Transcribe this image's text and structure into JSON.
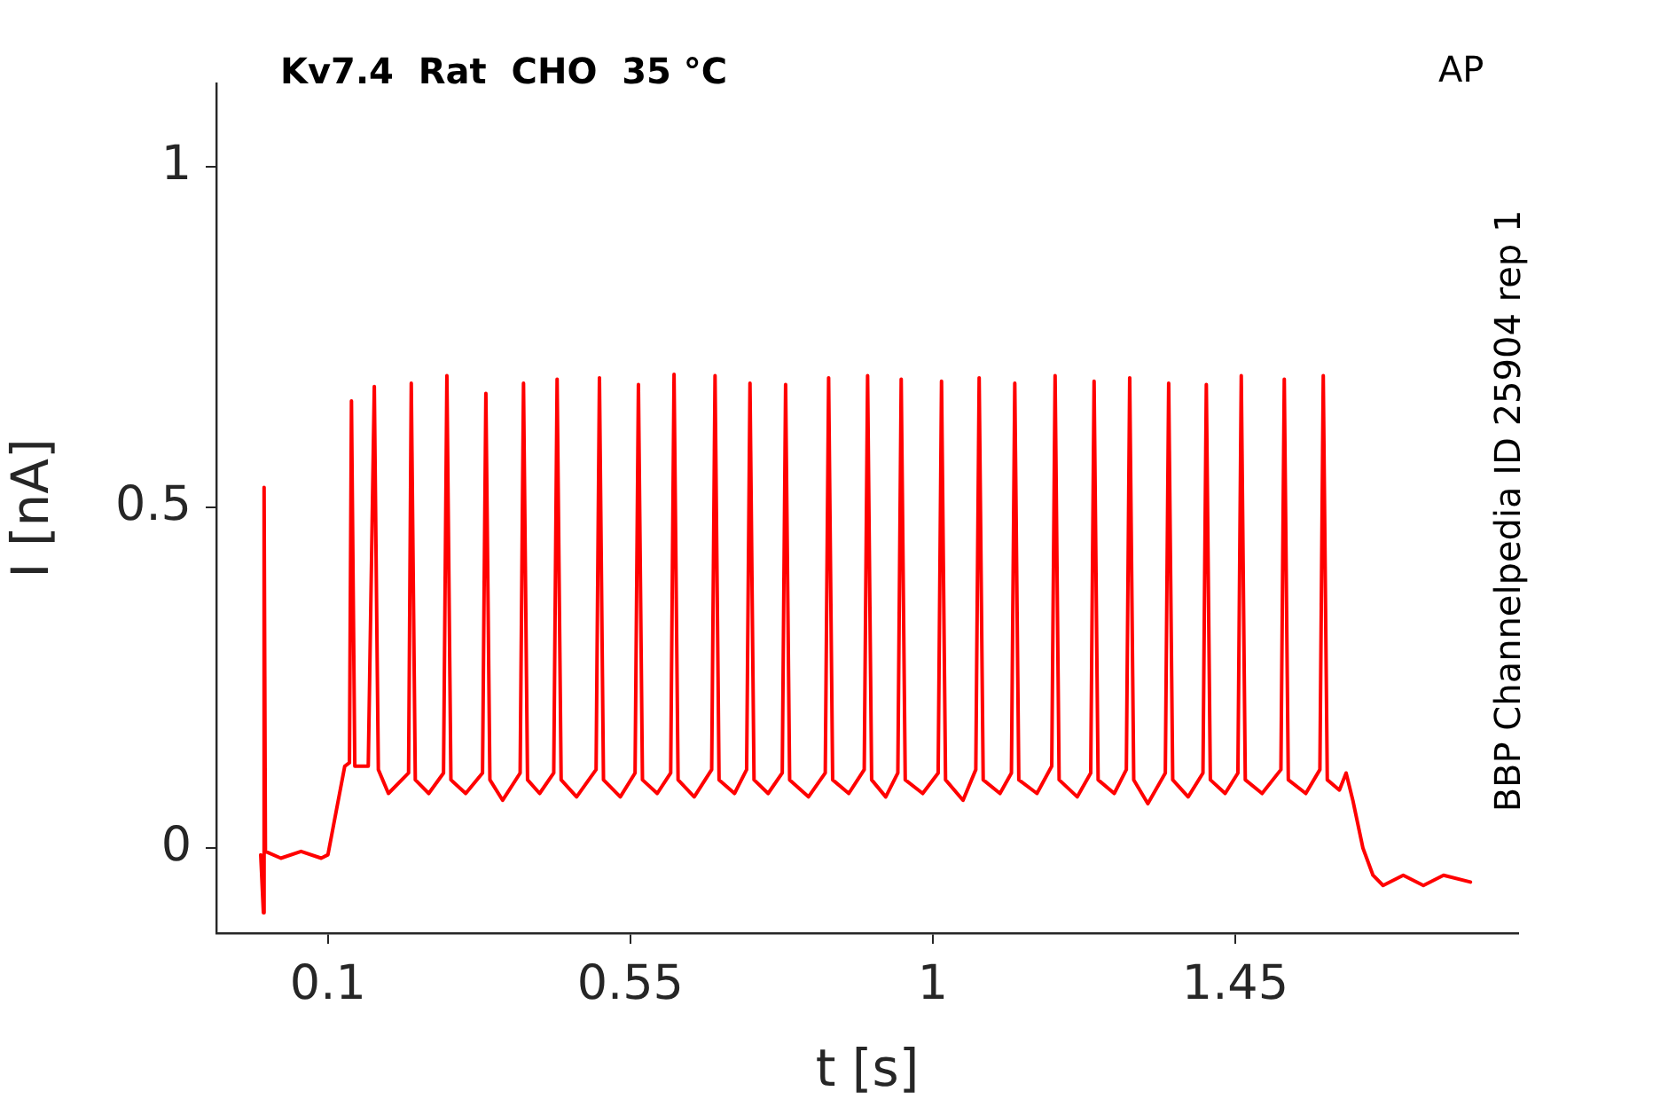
{
  "chart_data": {
    "type": "line",
    "title": "Kv7.4  Rat  CHO  35 °C",
    "xlabel": "t [s]",
    "ylabel": "I [nA]",
    "annotations": [
      "AP",
      "BBP Channelpedia ID 25904 rep 1"
    ],
    "xlim": [
      -0.066,
      1.871
    ],
    "ylim": [
      -0.125,
      1.122
    ],
    "xticks": [
      0.1,
      0.55,
      1,
      1.45
    ],
    "yticks": [
      0,
      0.5,
      1
    ],
    "grid": false,
    "legend": false,
    "marker": "none",
    "line_style": "solid",
    "series": [
      {
        "color": "#ff0000",
        "x": [
          0.0,
          0.004,
          0.005,
          0.007,
          0.03,
          0.06,
          0.09,
          0.1,
          0.125,
          0.132,
          0.135,
          0.14,
          0.16,
          0.169,
          0.175,
          0.19,
          0.22,
          0.224,
          0.23,
          0.25,
          0.272,
          0.277,
          0.283,
          0.305,
          0.33,
          0.335,
          0.341,
          0.36,
          0.386,
          0.391,
          0.397,
          0.415,
          0.436,
          0.441,
          0.447,
          0.47,
          0.499,
          0.504,
          0.51,
          0.535,
          0.557,
          0.562,
          0.568,
          0.59,
          0.61,
          0.615,
          0.621,
          0.645,
          0.671,
          0.676,
          0.682,
          0.705,
          0.723,
          0.728,
          0.734,
          0.755,
          0.776,
          0.781,
          0.787,
          0.815,
          0.84,
          0.845,
          0.851,
          0.875,
          0.898,
          0.903,
          0.909,
          0.93,
          0.948,
          0.953,
          0.959,
          0.985,
          1.008,
          1.013,
          1.019,
          1.045,
          1.064,
          1.069,
          1.075,
          1.1,
          1.117,
          1.122,
          1.128,
          1.155,
          1.177,
          1.182,
          1.188,
          1.215,
          1.235,
          1.24,
          1.246,
          1.27,
          1.288,
          1.293,
          1.299,
          1.32,
          1.346,
          1.351,
          1.357,
          1.38,
          1.402,
          1.407,
          1.413,
          1.435,
          1.454,
          1.459,
          1.465,
          1.49,
          1.518,
          1.523,
          1.529,
          1.555,
          1.576,
          1.581,
          1.587,
          1.605,
          1.615,
          1.625,
          1.64,
          1.655,
          1.67,
          1.7,
          1.73,
          1.76,
          1.8
        ],
        "values": [
          -0.01,
          -0.095,
          0.529,
          -0.005,
          -0.015,
          -0.005,
          -0.015,
          -0.01,
          0.12,
          0.125,
          0.656,
          0.12,
          0.12,
          0.677,
          0.115,
          0.08,
          0.11,
          0.682,
          0.1,
          0.08,
          0.11,
          0.693,
          0.1,
          0.08,
          0.11,
          0.667,
          0.1,
          0.07,
          0.11,
          0.682,
          0.1,
          0.08,
          0.11,
          0.688,
          0.1,
          0.075,
          0.115,
          0.69,
          0.1,
          0.075,
          0.11,
          0.68,
          0.1,
          0.08,
          0.11,
          0.695,
          0.1,
          0.075,
          0.115,
          0.693,
          0.1,
          0.08,
          0.115,
          0.682,
          0.1,
          0.08,
          0.11,
          0.68,
          0.1,
          0.075,
          0.11,
          0.69,
          0.1,
          0.08,
          0.115,
          0.693,
          0.1,
          0.075,
          0.11,
          0.688,
          0.1,
          0.08,
          0.11,
          0.685,
          0.1,
          0.07,
          0.115,
          0.69,
          0.1,
          0.08,
          0.11,
          0.682,
          0.1,
          0.08,
          0.12,
          0.693,
          0.1,
          0.075,
          0.11,
          0.685,
          0.1,
          0.08,
          0.115,
          0.69,
          0.1,
          0.065,
          0.11,
          0.682,
          0.1,
          0.075,
          0.11,
          0.68,
          0.1,
          0.08,
          0.11,
          0.693,
          0.1,
          0.08,
          0.115,
          0.688,
          0.1,
          0.08,
          0.115,
          0.693,
          0.1,
          0.085,
          0.11,
          0.07,
          0.0,
          -0.04,
          -0.055,
          -0.04,
          -0.055,
          -0.04,
          -0.05
        ]
      }
    ]
  }
}
